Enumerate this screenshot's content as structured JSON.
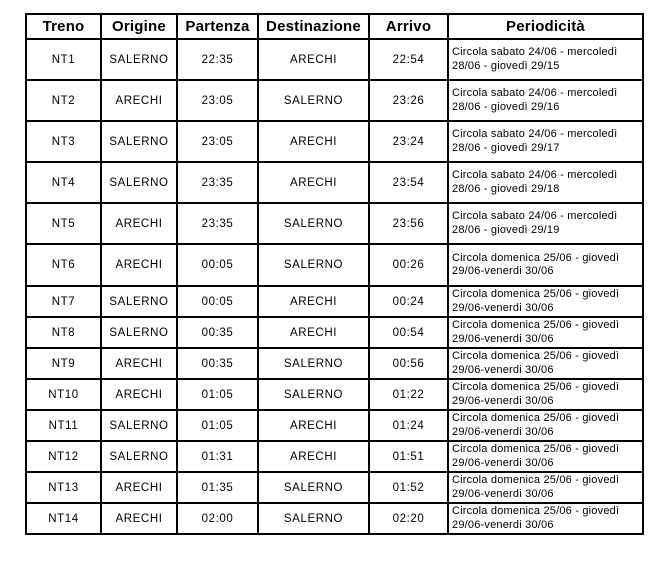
{
  "table": {
    "headers": [
      "Treno",
      "Origine",
      "Partenza",
      "Destinazione",
      "Arrivo",
      "Periodicità"
    ],
    "rows": [
      {
        "treno": "NT1",
        "origine": "SALERNO",
        "partenza": "22:35",
        "destinazione": "ARECHI",
        "arrivo": "22:54",
        "periodicita": "Circola sabato 24/06 - mercoledì 28/06 - giovedì 29/15"
      },
      {
        "treno": "NT2",
        "origine": "ARECHI",
        "partenza": "23:05",
        "destinazione": "SALERNO",
        "arrivo": "23:26",
        "periodicita": "Circola sabato 24/06 - mercoledì 28/06 - giovedì 29/16"
      },
      {
        "treno": "NT3",
        "origine": "SALERNO",
        "partenza": "23:05",
        "destinazione": "ARECHI",
        "arrivo": "23:24",
        "periodicita": "Circola sabato 24/06 - mercoledì 28/06 - giovedì 29/17"
      },
      {
        "treno": "NT4",
        "origine": "SALERNO",
        "partenza": "23:35",
        "destinazione": "ARECHI",
        "arrivo": "23:54",
        "periodicita": "Circola sabato 24/06 - mercoledì 28/06 - giovedì 29/18"
      },
      {
        "treno": "NT5",
        "origine": "ARECHI",
        "partenza": "23:35",
        "destinazione": "SALERNO",
        "arrivo": "23:56",
        "periodicita": "Circola sabato 24/06 - mercoledì 28/06 - giovedì 29/19"
      },
      {
        "treno": "NT6",
        "origine": "ARECHI",
        "partenza": "00:05",
        "destinazione": "SALERNO",
        "arrivo": "00:26",
        "periodicita": "Circola domenica 25/06 - giovedì 29/06-venerdi 30/06"
      },
      {
        "treno": "NT7",
        "origine": "SALERNO",
        "partenza": "00:05",
        "destinazione": "ARECHI",
        "arrivo": "00:24",
        "periodicita": "Circola domenica 25/06 - giovedì 29/06-venerdi 30/06"
      },
      {
        "treno": "NT8",
        "origine": "SALERNO",
        "partenza": "00:35",
        "destinazione": "ARECHI",
        "arrivo": "00:54",
        "periodicita": "Circola domenica 25/06 - giovedì 29/06-venerdi 30/06"
      },
      {
        "treno": "NT9",
        "origine": "ARECHI",
        "partenza": "00:35",
        "destinazione": "SALERNO",
        "arrivo": "00:56",
        "periodicita": "Circola domenica 25/06 - giovedì 29/06-venerdi 30/06"
      },
      {
        "treno": "NT10",
        "origine": "ARECHI",
        "partenza": "01:05",
        "destinazione": "SALERNO",
        "arrivo": "01:22",
        "periodicita": "Circola domenica 25/06 - giovedì 29/06-venerdi 30/06"
      },
      {
        "treno": "NT11",
        "origine": "SALERNO",
        "partenza": "01:05",
        "destinazione": "ARECHI",
        "arrivo": "01:24",
        "periodicita": "Circola domenica 25/06 - giovedì 29/06-venerdi 30/06"
      },
      {
        "treno": "NT12",
        "origine": "SALERNO",
        "partenza": "01:31",
        "destinazione": "ARECHI",
        "arrivo": "01:51",
        "periodicita": "Circola domenica 25/06 - giovedì 29/06-venerdi 30/06"
      },
      {
        "treno": "NT13",
        "origine": "ARECHI",
        "partenza": "01:35",
        "destinazione": "SALERNO",
        "arrivo": "01:52",
        "periodicita": "Circola domenica 25/06 - giovedì 29/06-venerdi 30/06"
      },
      {
        "treno": "NT14",
        "origine": "ARECHI",
        "partenza": "02:00",
        "destinazione": "SALERNO",
        "arrivo": "02:20",
        "periodicita": "Circola domenica 25/06 - giovedì 29/06-venerdi 30/06"
      }
    ]
  },
  "colors": {
    "text": "#000000",
    "border": "#000000",
    "background": "#ffffff"
  }
}
